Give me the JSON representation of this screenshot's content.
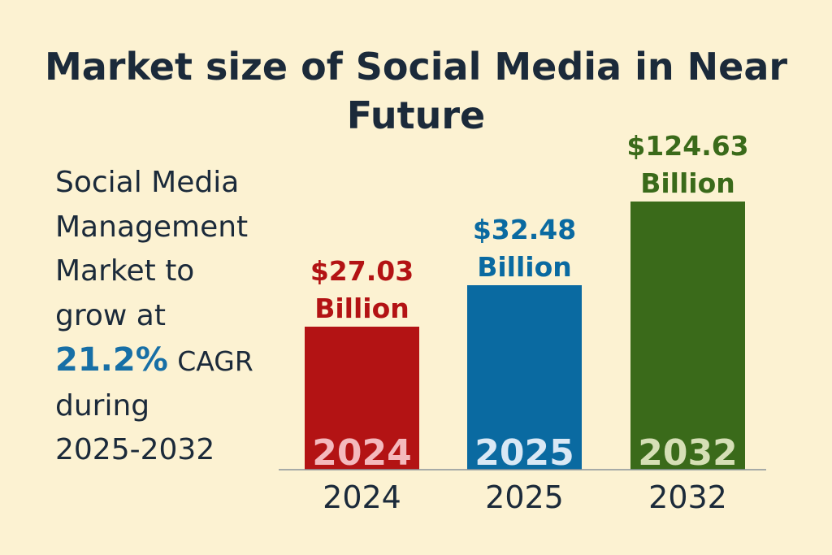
{
  "chart_data": {
    "type": "bar",
    "title": "Market size of Social Media in Near Future",
    "categories": [
      "2024",
      "2025",
      "2032"
    ],
    "values": [
      27.03,
      32.48,
      124.63
    ],
    "unit": "Billion USD",
    "value_labels": [
      [
        "$27.03",
        "Billion"
      ],
      [
        "$32.48",
        "Billion"
      ],
      [
        "$124.63",
        "Billion"
      ]
    ],
    "colors": [
      "#b31314",
      "#0a6aa1",
      "#3a6a1a"
    ],
    "inner_label_colors": [
      "#f4b9bd",
      "#d9e8f5",
      "#d6dfb6"
    ],
    "xlabel": "",
    "ylabel": "",
    "grid": false
  },
  "side_text": {
    "lines": [
      "Social Media",
      "Management",
      "Market to",
      "grow at"
    ],
    "rate": "21.2%",
    "rate_suffix": "CAGR",
    "lines_after": [
      "during",
      "2025-2032"
    ]
  }
}
